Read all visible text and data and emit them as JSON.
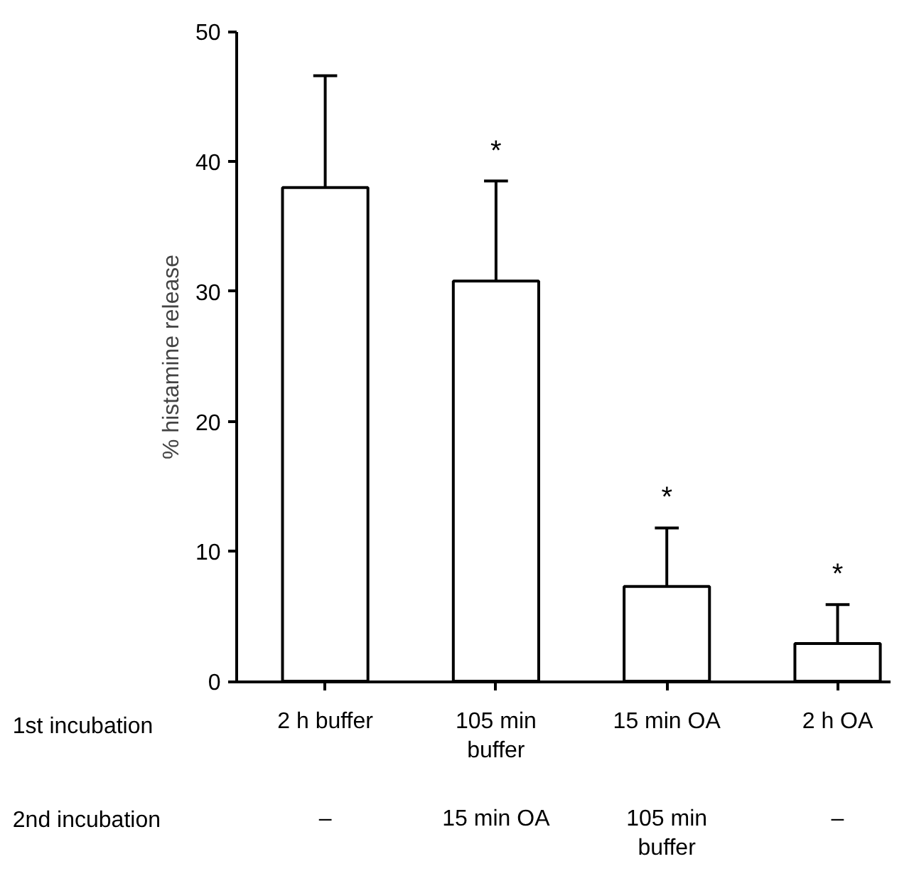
{
  "chart_data": {
    "type": "bar",
    "ylabel": "% histamine release",
    "categories": [
      "2 h buffer",
      "105 min\nbuffer",
      "15 min OA",
      "2 h OA"
    ],
    "values": [
      38.0,
      30.8,
      7.3,
      2.9
    ],
    "errors": [
      [
        38.0,
        46.6
      ],
      [
        30.8,
        38.5
      ],
      [
        7.3,
        11.8
      ],
      [
        2.9,
        5.9
      ]
    ],
    "color": "#ffffff",
    "ylim": [
      0,
      50
    ],
    "yticks": [
      0,
      10,
      20,
      30,
      40,
      50
    ],
    "grid": false,
    "annotations": [
      "1st incubation",
      "2nd incubation",
      "–",
      "15 min OA",
      "105 min\nbuffer",
      "–",
      {
        "text": "*",
        "x": "105 min\nbuffer",
        "y": 38.5
      },
      {
        "text": "*",
        "x": "15 min OA",
        "y": 11.8
      },
      {
        "text": "*",
        "x": "2 h OA",
        "y": 5.9
      }
    ]
  }
}
